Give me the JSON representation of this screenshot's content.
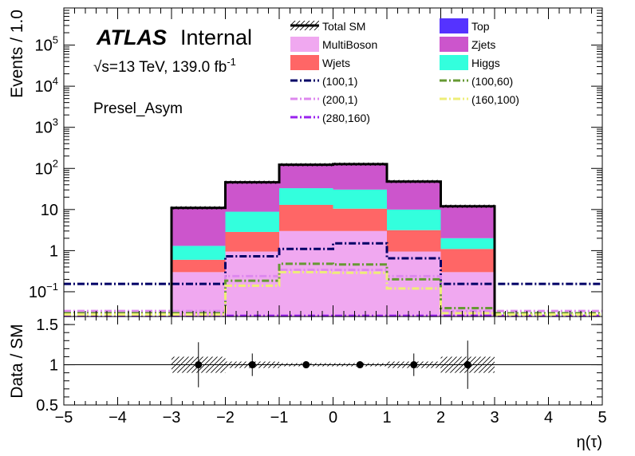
{
  "chart_data": {
    "type": "bar",
    "stacked": true,
    "yscale": "log",
    "x_edges": [
      -3,
      -2,
      -1,
      0,
      1,
      2,
      3
    ],
    "xlim": [
      -5,
      5
    ],
    "ylim": [
      0.025,
      800000
    ],
    "xlabel": "η(τ)",
    "ylabel": "Events / 1.0",
    "x_ticks": [
      "−5",
      "−4",
      "−3",
      "−2",
      "−1",
      "0",
      "1",
      "2",
      "3",
      "4",
      "5"
    ],
    "y_ticks": [
      {
        "base": "10",
        "exp": "−1",
        "value": 0.1
      },
      {
        "base": "1",
        "exp": "",
        "value": 1
      },
      {
        "base": "10",
        "exp": "",
        "value": 10
      },
      {
        "base": "10",
        "exp": "2",
        "value": 100
      },
      {
        "base": "10",
        "exp": "3",
        "value": 1000
      },
      {
        "base": "10",
        "exp": "4",
        "value": 10000
      },
      {
        "base": "10",
        "exp": "5",
        "value": 100000
      }
    ],
    "labels": {
      "atlas": "ATLAS",
      "internal": "Internal",
      "energy": "√s=13 TeV, 139.0 fb",
      "energy_sup": "-1",
      "region": "Presel_Asym"
    },
    "stack": [
      {
        "name": "MultiBoson",
        "color": "#f0a8f0",
        "values": [
          0.3,
          0.95,
          3.0,
          3.0,
          0.95,
          0.3
        ]
      },
      {
        "name": "Wjets",
        "color": "#ff6666",
        "values": [
          0.3,
          1.9,
          10.0,
          7.5,
          2.2,
          0.8
        ]
      },
      {
        "name": "Higgs",
        "color": "#33ffdd",
        "values": [
          0.7,
          6.0,
          20.0,
          20.0,
          6.8,
          0.9
        ]
      },
      {
        "name": "Top",
        "color": "#5533ff",
        "values": [
          0.01,
          0.03,
          0.08,
          0.08,
          0.03,
          0.01
        ]
      },
      {
        "name": "Zjets",
        "color": "#cc55cc",
        "values": [
          9.7,
          37.0,
          90.0,
          97.0,
          38.0,
          10.0
        ]
      }
    ],
    "total": {
      "name": "Total SM",
      "values": [
        11,
        46,
        123,
        127,
        48,
        12
      ]
    },
    "signals": [
      {
        "name": "(100,1)",
        "color": "#000066",
        "values": [
          0.155,
          0.73,
          1.1,
          1.5,
          0.65,
          0.155
        ]
      },
      {
        "name": "(200,1)",
        "color": "#dd88ee",
        "values": [
          0.034,
          0.24,
          0.34,
          0.34,
          0.24,
          0.034
        ]
      },
      {
        "name": "(280,160)",
        "color": "#9922ee",
        "values": [
          0.026,
          0.026,
          0.026,
          0.026,
          0.026,
          0.026
        ]
      },
      {
        "name": "(100,60)",
        "color": "#669933",
        "values": [
          0.03,
          0.185,
          0.48,
          0.46,
          0.2,
          0.04
        ]
      },
      {
        "name": "(160,100)",
        "color": "#eeee77",
        "values": [
          0.028,
          0.14,
          0.3,
          0.29,
          0.12,
          0.03
        ]
      }
    ],
    "legend": [
      {
        "name": "Total SM",
        "kind": "total"
      },
      {
        "name": "Top",
        "kind": "fill",
        "color": "#5533ff"
      },
      {
        "name": "MultiBoson",
        "kind": "fill",
        "color": "#f0a8f0"
      },
      {
        "name": "Zjets",
        "kind": "fill",
        "color": "#cc55cc"
      },
      {
        "name": "Wjets",
        "kind": "fill",
        "color": "#ff6666"
      },
      {
        "name": "Higgs",
        "kind": "fill",
        "color": "#33ffdd"
      },
      {
        "name": "(100,1)",
        "kind": "line",
        "color": "#000066"
      },
      {
        "name": "(100,60)",
        "kind": "line",
        "color": "#669933"
      },
      {
        "name": "(200,1)",
        "kind": "line",
        "color": "#dd88ee"
      },
      {
        "name": "(160,100)",
        "kind": "line",
        "color": "#eeee77"
      },
      {
        "name": "(280,160)",
        "kind": "line",
        "color": "#9922ee"
      }
    ],
    "legend_placement": "top-right",
    "ratio": {
      "ylabel": "Data / SM",
      "ylim": [
        0.5,
        1.6
      ],
      "y_ticks": [
        "0.5",
        "1",
        "1.5"
      ],
      "x": [
        -2.5,
        -1.5,
        -0.5,
        0.5,
        1.5,
        2.5
      ],
      "values": [
        1,
        1,
        1,
        1,
        1,
        1
      ],
      "errors": [
        0.28,
        0.14,
        0.04,
        0.04,
        0.14,
        0.3
      ],
      "band": [
        0.1,
        0.04,
        0.02,
        0.02,
        0.04,
        0.1
      ]
    }
  }
}
